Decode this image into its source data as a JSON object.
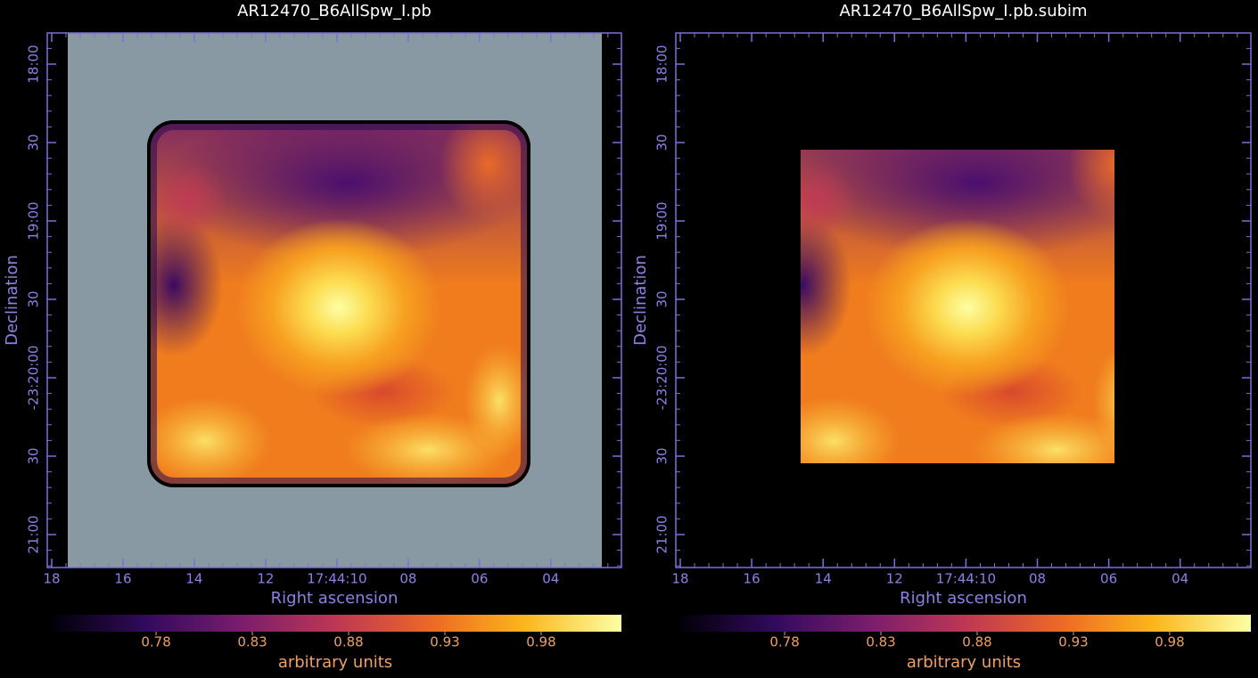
{
  "chart_data": [
    {
      "type": "image",
      "title": "AR12470_B6AllSpw_I.pb",
      "xlabel": "Right ascension",
      "ylabel": "Declination",
      "xlim": [
        18.125,
        2.02
      ],
      "ylim": [
        -23.353503,
        -23.296686
      ],
      "xticks": [
        18,
        16,
        14,
        12,
        {
          "value": 10,
          "label": "17:44:10"
        },
        {
          "value": 8,
          "label": "08"
        },
        {
          "value": 6,
          "label": "06"
        },
        {
          "value": 4,
          "label": "04"
        }
      ],
      "yticks": [
        {
          "value": -23.3,
          "label": "18:00"
        },
        {
          "value": -23.308333,
          "label": "30"
        },
        {
          "value": -23.316667,
          "label": "19:00"
        },
        {
          "value": -23.325,
          "label": "30"
        },
        {
          "value": -23.333333,
          "label": "-23:20:00"
        },
        {
          "value": -23.341667,
          "label": "30"
        },
        {
          "value": -23.35,
          "label": "21:00"
        }
      ],
      "colorbar": {
        "label": "arbitrary units",
        "clim": [
          0.7244,
          1.0217
        ],
        "ticks": [
          0.78,
          0.83,
          0.88,
          0.93,
          0.98
        ]
      }
    },
    {
      "type": "image",
      "title": "AR12470_B6AllSpw_I.pb.subim",
      "xlabel": "Right ascension",
      "ylabel": "Declination",
      "xlim": [
        18.125,
        2.02
      ],
      "ylim": [
        -23.353503,
        -23.296686
      ],
      "xticks": [
        18,
        16,
        14,
        12,
        {
          "value": 10,
          "label": "17:44:10"
        },
        {
          "value": 8,
          "label": "08"
        },
        {
          "value": 6,
          "label": "06"
        },
        {
          "value": 4,
          "label": "04"
        }
      ],
      "yticks": [
        {
          "value": -23.3,
          "label": "18:00"
        },
        {
          "value": -23.308333,
          "label": "30"
        },
        {
          "value": -23.316667,
          "label": "19:00"
        },
        {
          "value": -23.325,
          "label": "30"
        },
        {
          "value": -23.333333,
          "label": "-23:20:00"
        },
        {
          "value": -23.341667,
          "label": "30"
        },
        {
          "value": -23.35,
          "label": "21:00"
        }
      ],
      "colorbar": {
        "label": "arbitrary units",
        "clim": [
          0.7244,
          1.0217
        ],
        "ticks": [
          0.78,
          0.83,
          0.88,
          0.93,
          0.98
        ]
      }
    }
  ]
}
